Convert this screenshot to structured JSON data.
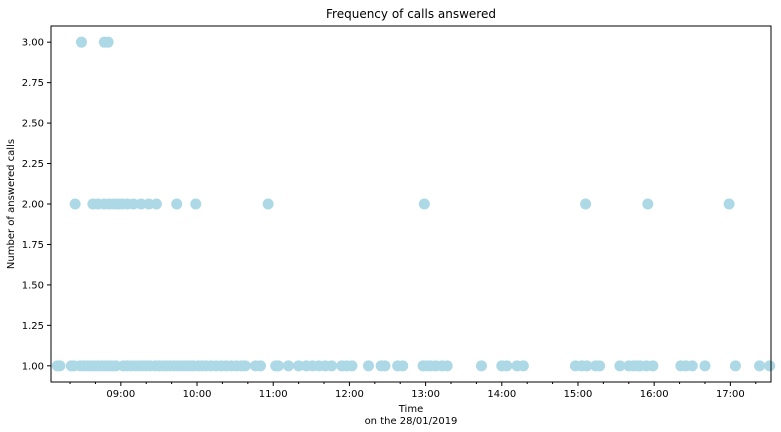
{
  "chart_data": {
    "type": "scatter",
    "title": "Frequency of calls answered",
    "xlabel": "Time",
    "xlabel_line2": "on the 28/01/2019",
    "ylabel": "Number of answered calls",
    "x_unit": "time of day (HH:MM)",
    "xlim": [
      "08:05",
      "17:32"
    ],
    "ylim": [
      0.9,
      3.1
    ],
    "x_ticks": [
      "09:00",
      "10:00",
      "11:00",
      "12:00",
      "13:00",
      "14:00",
      "15:00",
      "16:00",
      "17:00"
    ],
    "y_ticks": [
      "1.00",
      "1.25",
      "1.50",
      "1.75",
      "2.00",
      "2.25",
      "2.50",
      "2.75",
      "3.00"
    ],
    "y_tick_values": [
      1.0,
      1.25,
      1.5,
      1.75,
      2.0,
      2.25,
      2.5,
      2.75,
      3.0
    ],
    "grid": false,
    "marker_color": "#add8e6",
    "points": [
      {
        "x": "08:10",
        "y": 1
      },
      {
        "x": "08:12",
        "y": 1
      },
      {
        "x": "08:21",
        "y": 1
      },
      {
        "x": "08:23",
        "y": 1
      },
      {
        "x": "08:28",
        "y": 1
      },
      {
        "x": "08:31",
        "y": 1
      },
      {
        "x": "08:34",
        "y": 1
      },
      {
        "x": "08:37",
        "y": 1
      },
      {
        "x": "08:40",
        "y": 1
      },
      {
        "x": "08:42",
        "y": 1
      },
      {
        "x": "08:45",
        "y": 1
      },
      {
        "x": "08:48",
        "y": 1
      },
      {
        "x": "08:50",
        "y": 1
      },
      {
        "x": "08:53",
        "y": 1
      },
      {
        "x": "08:56",
        "y": 1
      },
      {
        "x": "09:02",
        "y": 1
      },
      {
        "x": "09:05",
        "y": 1
      },
      {
        "x": "09:08",
        "y": 1
      },
      {
        "x": "09:11",
        "y": 1
      },
      {
        "x": "09:14",
        "y": 1
      },
      {
        "x": "09:17",
        "y": 1
      },
      {
        "x": "09:20",
        "y": 1
      },
      {
        "x": "09:23",
        "y": 1
      },
      {
        "x": "09:27",
        "y": 1
      },
      {
        "x": "09:30",
        "y": 1
      },
      {
        "x": "09:33",
        "y": 1
      },
      {
        "x": "09:36",
        "y": 1
      },
      {
        "x": "09:39",
        "y": 1
      },
      {
        "x": "09:42",
        "y": 1
      },
      {
        "x": "09:45",
        "y": 1
      },
      {
        "x": "09:48",
        "y": 1
      },
      {
        "x": "09:51",
        "y": 1
      },
      {
        "x": "09:54",
        "y": 1
      },
      {
        "x": "09:57",
        "y": 1
      },
      {
        "x": "10:01",
        "y": 1
      },
      {
        "x": "10:04",
        "y": 1
      },
      {
        "x": "10:07",
        "y": 1
      },
      {
        "x": "10:11",
        "y": 1
      },
      {
        "x": "10:15",
        "y": 1
      },
      {
        "x": "10:19",
        "y": 1
      },
      {
        "x": "10:23",
        "y": 1
      },
      {
        "x": "10:27",
        "y": 1
      },
      {
        "x": "10:31",
        "y": 1
      },
      {
        "x": "10:35",
        "y": 1
      },
      {
        "x": "10:38",
        "y": 1
      },
      {
        "x": "10:46",
        "y": 1
      },
      {
        "x": "10:50",
        "y": 1
      },
      {
        "x": "11:02",
        "y": 1
      },
      {
        "x": "11:04",
        "y": 1
      },
      {
        "x": "11:12",
        "y": 1
      },
      {
        "x": "11:20",
        "y": 1
      },
      {
        "x": "11:26",
        "y": 1
      },
      {
        "x": "11:31",
        "y": 1
      },
      {
        "x": "11:36",
        "y": 1
      },
      {
        "x": "11:41",
        "y": 1
      },
      {
        "x": "11:46",
        "y": 1
      },
      {
        "x": "11:54",
        "y": 1
      },
      {
        "x": "11:58",
        "y": 1
      },
      {
        "x": "12:02",
        "y": 1
      },
      {
        "x": "12:15",
        "y": 1
      },
      {
        "x": "12:25",
        "y": 1
      },
      {
        "x": "12:28",
        "y": 1
      },
      {
        "x": "12:38",
        "y": 1
      },
      {
        "x": "12:42",
        "y": 1
      },
      {
        "x": "12:58",
        "y": 1
      },
      {
        "x": "13:01",
        "y": 1
      },
      {
        "x": "13:04",
        "y": 1
      },
      {
        "x": "13:08",
        "y": 1
      },
      {
        "x": "13:13",
        "y": 1
      },
      {
        "x": "13:17",
        "y": 1
      },
      {
        "x": "13:44",
        "y": 1
      },
      {
        "x": "14:00",
        "y": 1
      },
      {
        "x": "14:04",
        "y": 1
      },
      {
        "x": "14:12",
        "y": 1
      },
      {
        "x": "14:17",
        "y": 1
      },
      {
        "x": "14:58",
        "y": 1
      },
      {
        "x": "15:03",
        "y": 1
      },
      {
        "x": "15:07",
        "y": 1
      },
      {
        "x": "15:14",
        "y": 1
      },
      {
        "x": "15:17",
        "y": 1
      },
      {
        "x": "15:33",
        "y": 1
      },
      {
        "x": "15:40",
        "y": 1
      },
      {
        "x": "15:44",
        "y": 1
      },
      {
        "x": "15:47",
        "y": 1
      },
      {
        "x": "15:49",
        "y": 1
      },
      {
        "x": "15:54",
        "y": 1
      },
      {
        "x": "15:59",
        "y": 1
      },
      {
        "x": "16:21",
        "y": 1
      },
      {
        "x": "16:25",
        "y": 1
      },
      {
        "x": "16:30",
        "y": 1
      },
      {
        "x": "16:40",
        "y": 1
      },
      {
        "x": "17:04",
        "y": 1
      },
      {
        "x": "17:23",
        "y": 1
      },
      {
        "x": "17:31",
        "y": 1
      },
      {
        "x": "08:24",
        "y": 2
      },
      {
        "x": "08:38",
        "y": 2
      },
      {
        "x": "08:42",
        "y": 2
      },
      {
        "x": "08:47",
        "y": 2
      },
      {
        "x": "08:51",
        "y": 2
      },
      {
        "x": "08:55",
        "y": 2
      },
      {
        "x": "08:58",
        "y": 2
      },
      {
        "x": "09:01",
        "y": 2
      },
      {
        "x": "09:05",
        "y": 2
      },
      {
        "x": "09:10",
        "y": 2
      },
      {
        "x": "09:16",
        "y": 2
      },
      {
        "x": "09:22",
        "y": 2
      },
      {
        "x": "09:28",
        "y": 2
      },
      {
        "x": "09:44",
        "y": 2
      },
      {
        "x": "09:59",
        "y": 2
      },
      {
        "x": "10:56",
        "y": 2
      },
      {
        "x": "12:59",
        "y": 2
      },
      {
        "x": "15:06",
        "y": 2
      },
      {
        "x": "15:55",
        "y": 2
      },
      {
        "x": "16:59",
        "y": 2
      },
      {
        "x": "08:29",
        "y": 3
      },
      {
        "x": "08:47",
        "y": 3
      },
      {
        "x": "08:50",
        "y": 3
      }
    ]
  }
}
